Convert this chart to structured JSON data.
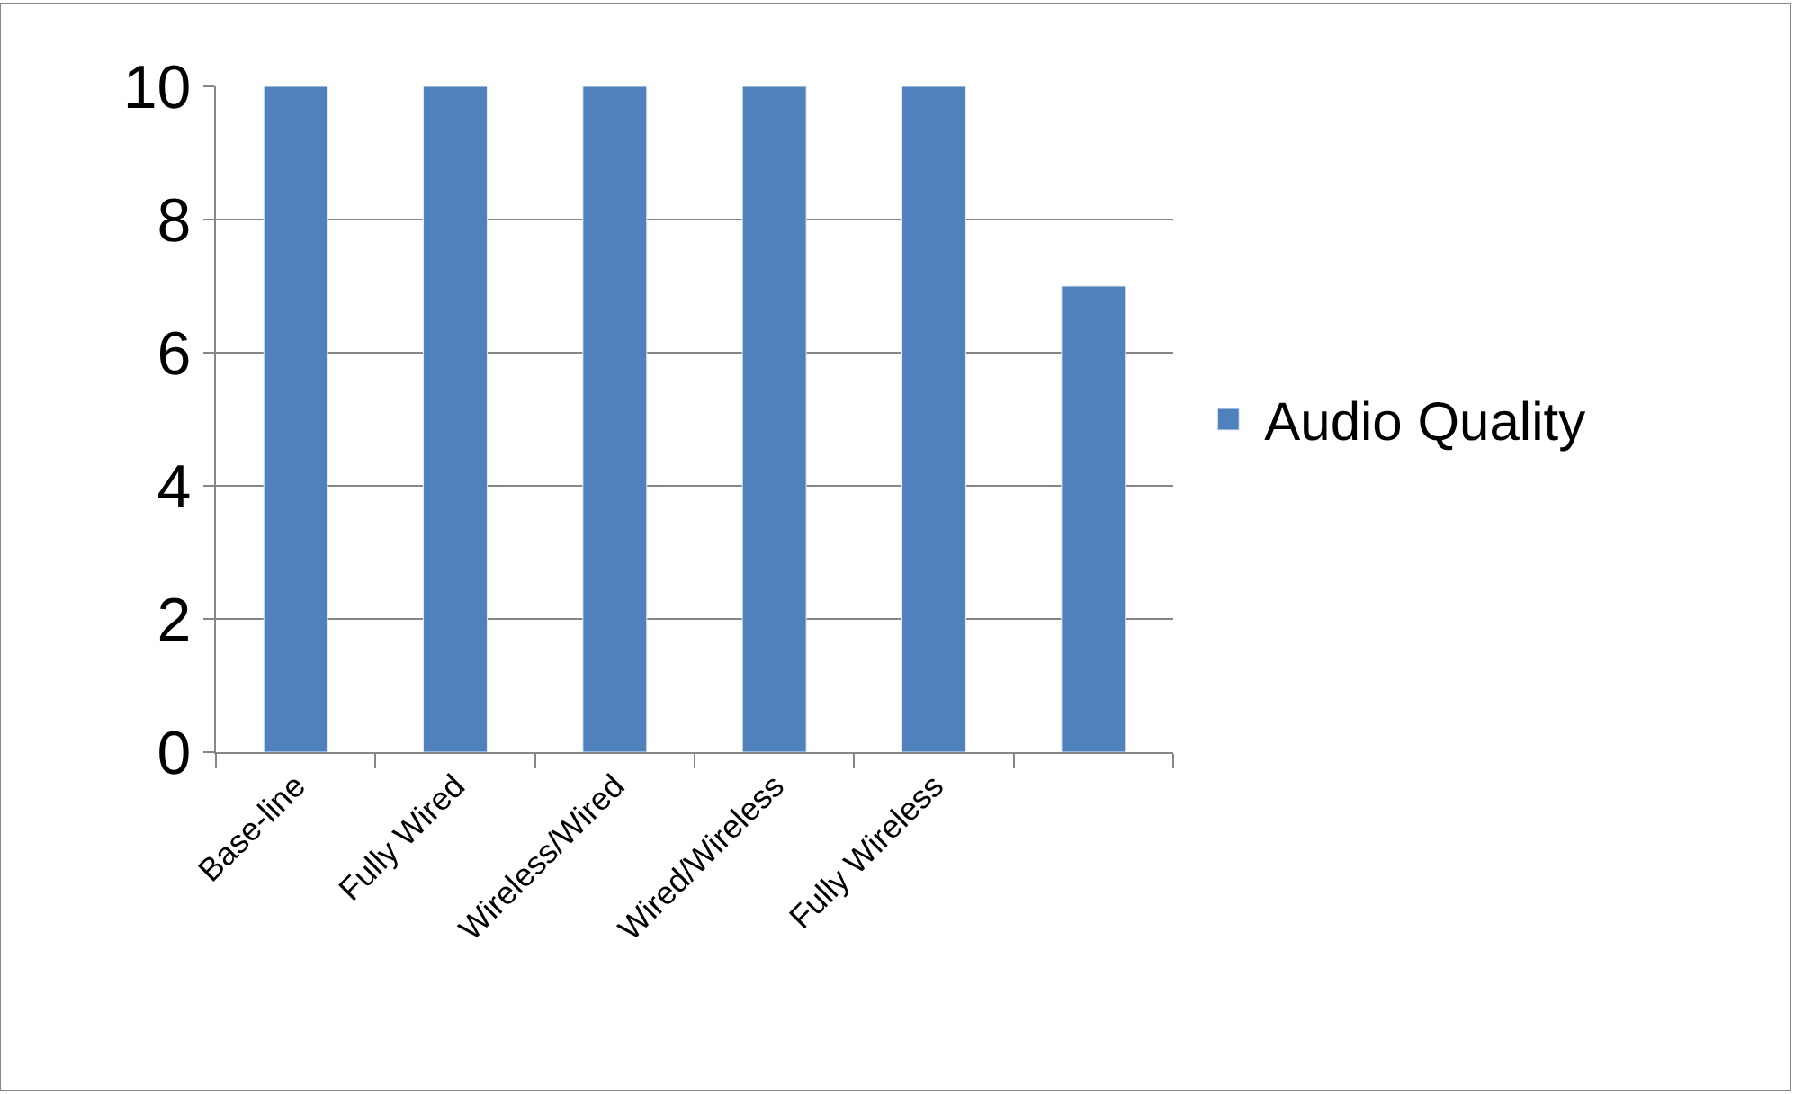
{
  "chart_data": {
    "type": "bar",
    "categories": [
      "Base-line",
      "Fully Wired",
      "Wireless/Wired",
      "Wired/Wireless",
      "Fully Wireless",
      null
    ],
    "series": [
      {
        "name": "Audio Quality",
        "color": "#4f81bd",
        "values": [
          10,
          10,
          10,
          10,
          10,
          7
        ]
      }
    ],
    "ylim": [
      0,
      10
    ],
    "yticks": [
      0,
      2,
      4,
      6,
      8,
      10
    ],
    "grid": "y",
    "legend": "right"
  }
}
